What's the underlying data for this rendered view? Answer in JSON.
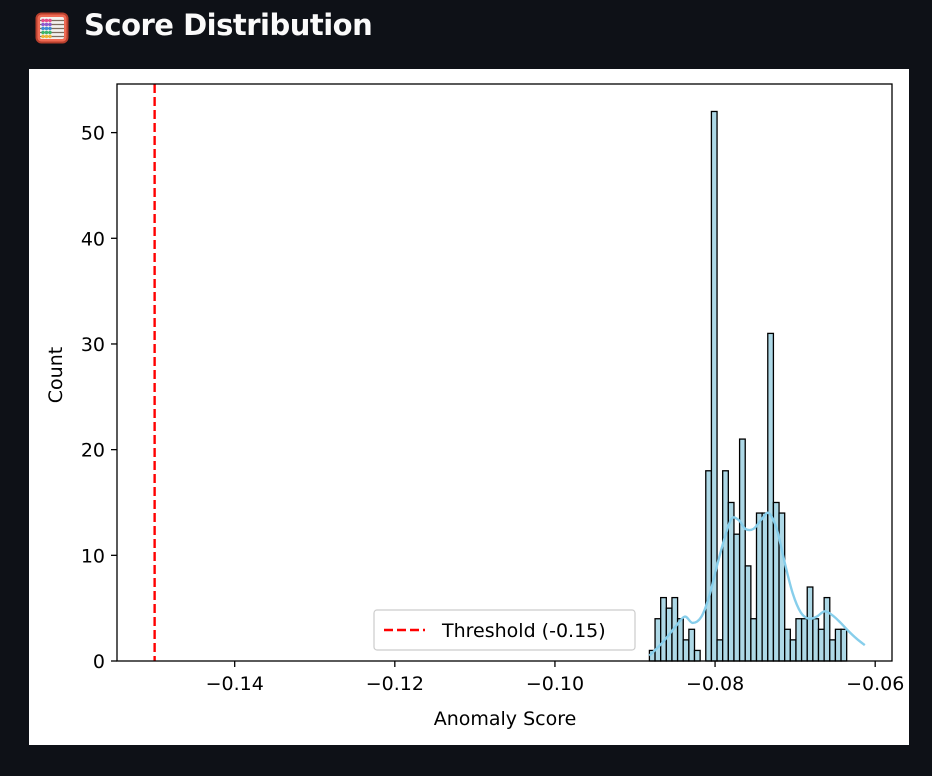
{
  "header": {
    "title": "Score Distribution",
    "icon": "abacus-icon"
  },
  "chart_data": {
    "type": "bar",
    "xlabel": "Anomaly Score",
    "ylabel": "Count",
    "xlim": [
      -0.1547,
      -0.0579
    ],
    "ylim": [
      0,
      54.6
    ],
    "xticks": [
      -0.14,
      -0.12,
      -0.1,
      -0.08,
      -0.06
    ],
    "xtick_labels": [
      "−0.14",
      "−0.12",
      "−0.10",
      "−0.08",
      "−0.06"
    ],
    "yticks": [
      0,
      10,
      20,
      30,
      40,
      50
    ],
    "ytick_labels": [
      "0",
      "10",
      "20",
      "30",
      "40",
      "50"
    ],
    "bar_color": "#add8e6",
    "bins": {
      "start": -0.0882,
      "width": 0.000704,
      "counts": [
        1,
        4,
        6,
        5,
        6,
        4,
        2,
        3,
        1,
        0,
        18,
        52,
        2,
        18,
        15,
        12,
        21,
        9,
        4,
        14,
        14,
        31,
        15,
        14,
        3,
        2,
        4,
        4,
        7,
        4,
        3,
        6,
        2,
        3,
        3
      ]
    },
    "kde": {
      "color": "#87ceeb",
      "points": [
        [
          -0.0882,
          0.5
        ],
        [
          -0.0865,
          1.8
        ],
        [
          -0.085,
          3.2
        ],
        [
          -0.0838,
          4.2
        ],
        [
          -0.0828,
          3.6
        ],
        [
          -0.0817,
          4.2
        ],
        [
          -0.0807,
          6.2
        ],
        [
          -0.0797,
          9.2
        ],
        [
          -0.0787,
          11.9
        ],
        [
          -0.0779,
          13.5
        ],
        [
          -0.077,
          13.3
        ],
        [
          -0.0762,
          12.5
        ],
        [
          -0.0752,
          12.5
        ],
        [
          -0.0742,
          13.4
        ],
        [
          -0.0733,
          14.0
        ],
        [
          -0.0723,
          12.5
        ],
        [
          -0.0713,
          9.3
        ],
        [
          -0.0703,
          6.4
        ],
        [
          -0.0693,
          4.6
        ],
        [
          -0.0683,
          4.0
        ],
        [
          -0.0673,
          4.2
        ],
        [
          -0.0663,
          4.7
        ],
        [
          -0.0653,
          4.3
        ],
        [
          -0.0643,
          3.6
        ],
        [
          -0.0633,
          2.8
        ],
        [
          -0.0623,
          2.1
        ],
        [
          -0.0613,
          1.5
        ]
      ]
    },
    "threshold": {
      "value": -0.15,
      "color": "#ff0000",
      "label": "Threshold (-0.15)"
    },
    "legend": {
      "position": "lower-center",
      "entries": [
        "Threshold (-0.15)"
      ]
    },
    "grid": false
  }
}
